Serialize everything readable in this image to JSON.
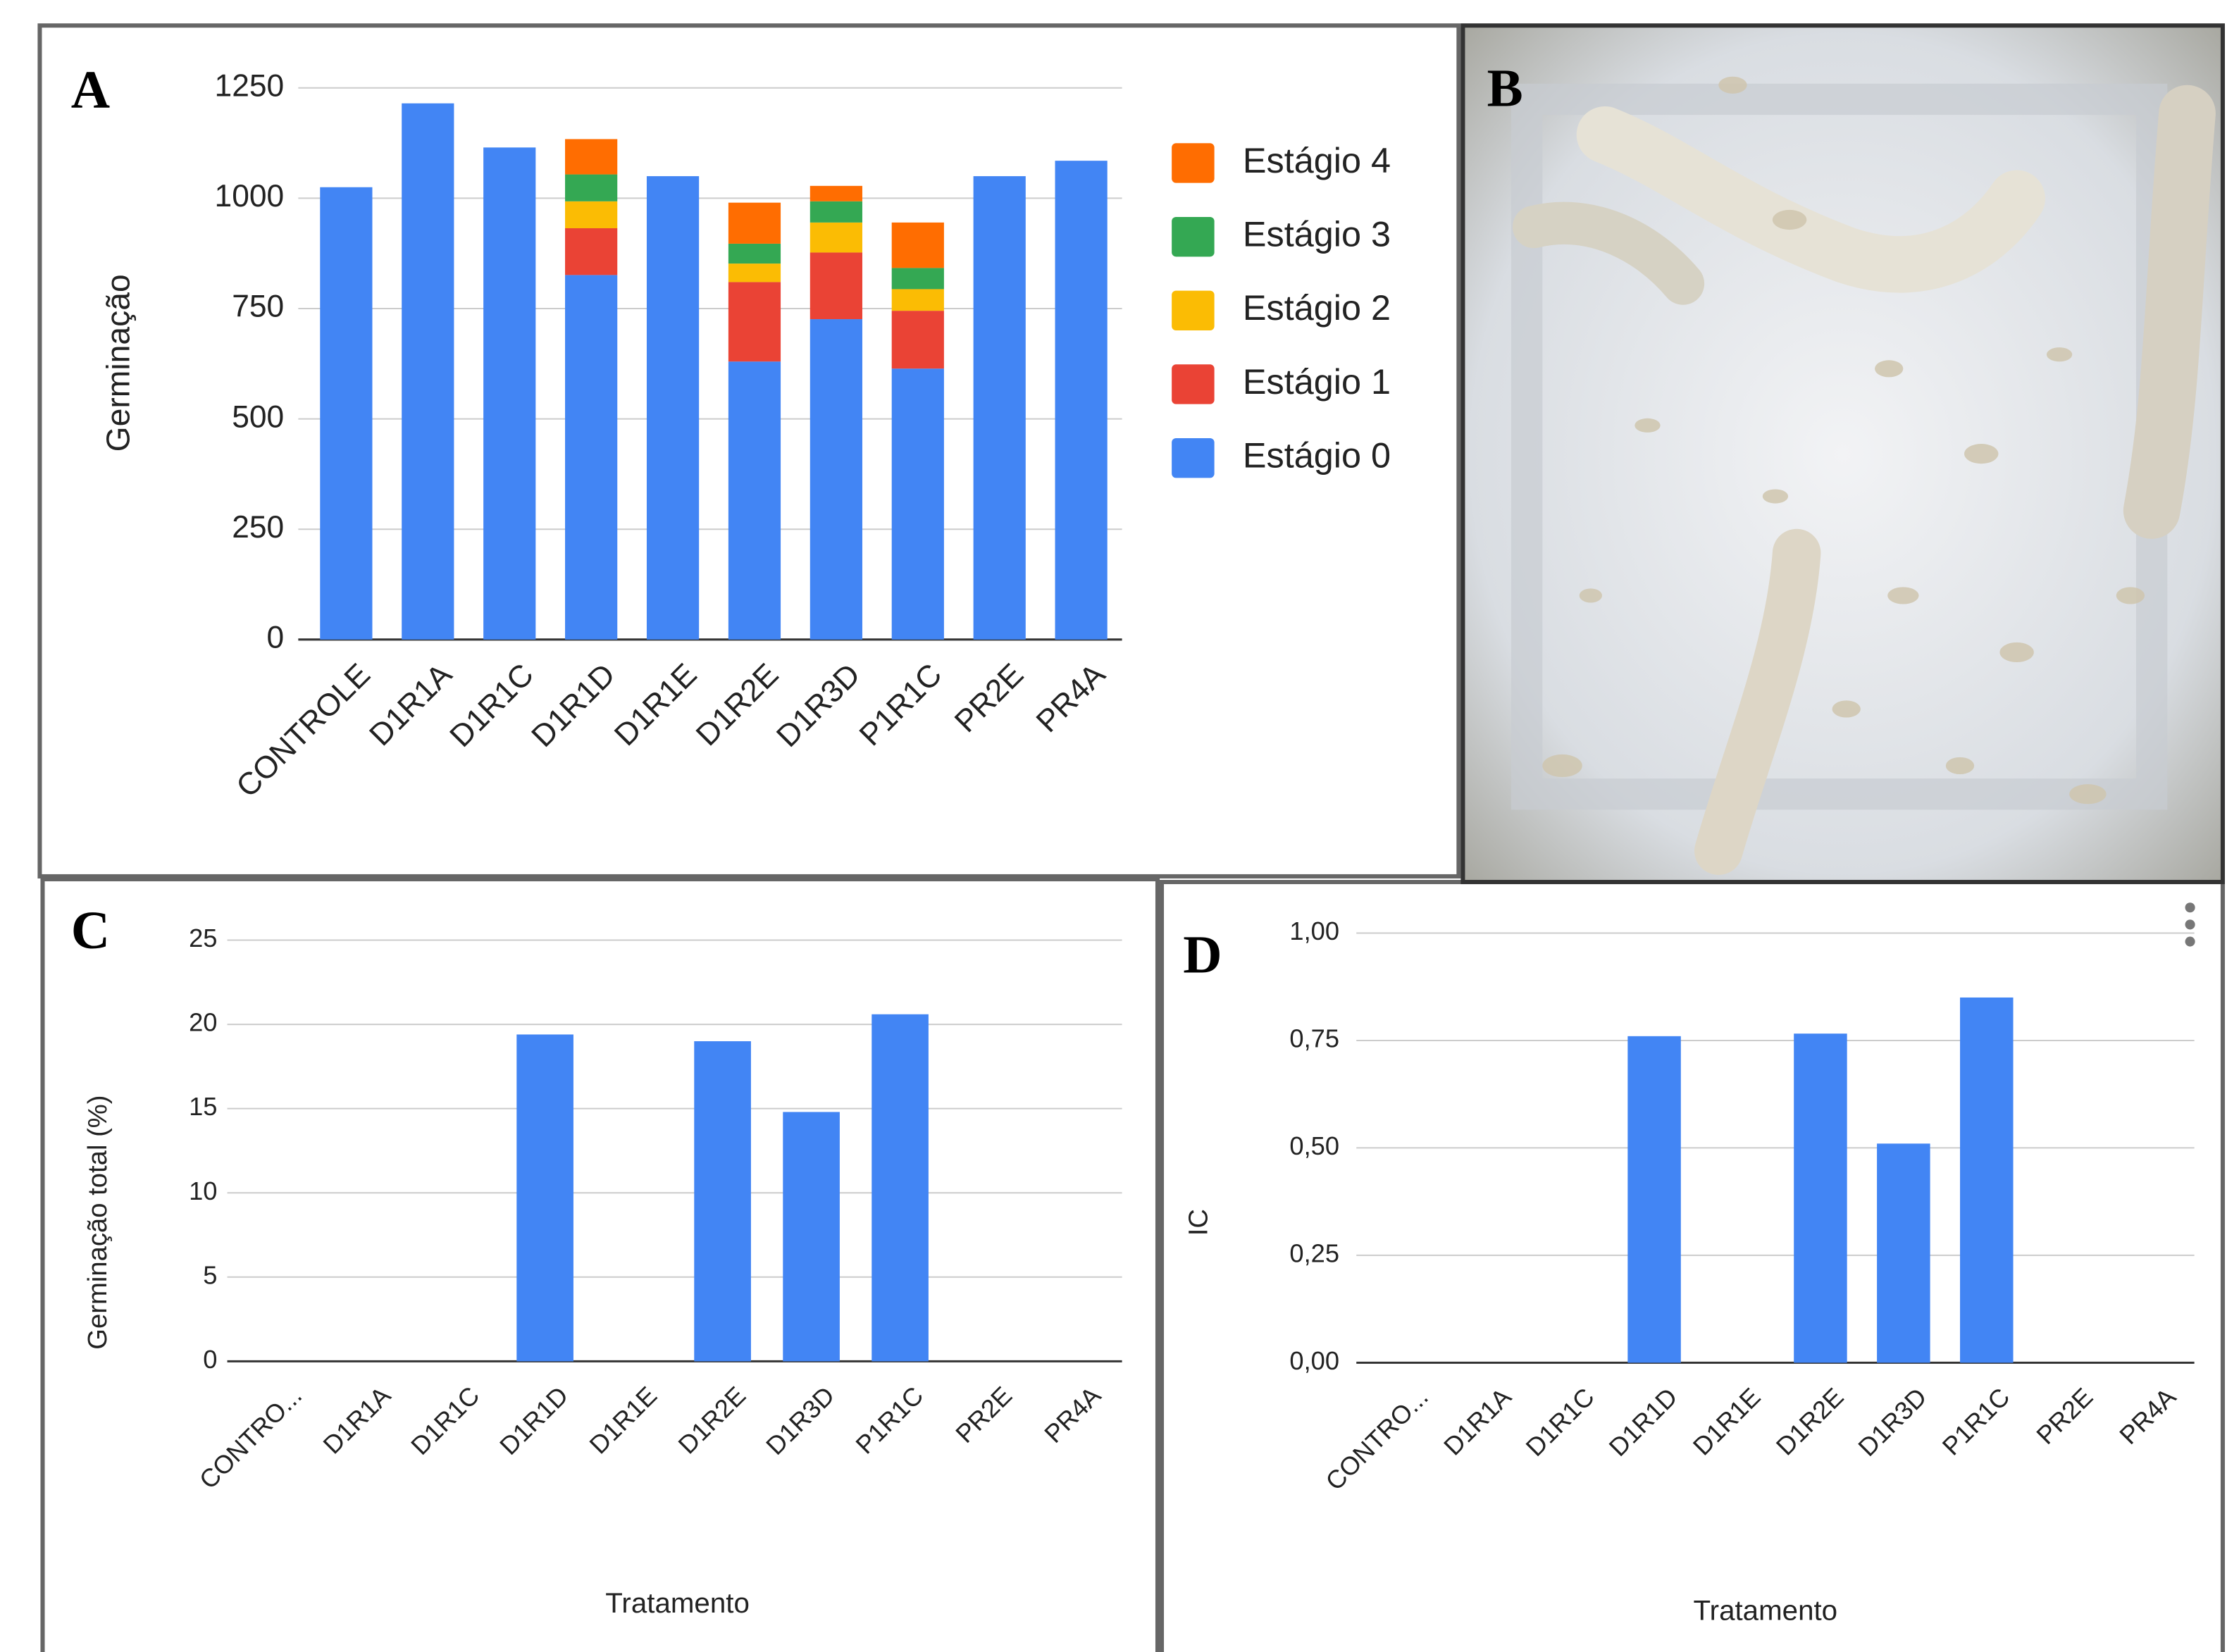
{
  "chart_data": [
    {
      "type": "stacked-bar",
      "panel": "A",
      "ylabel": "Germinação",
      "categories": [
        "CONTROLE",
        "D1R1A",
        "D1R1C",
        "D1R1D",
        "D1R1E",
        "D1R2E",
        "D1R3D",
        "P1R1C",
        "PR2E",
        "PR4A"
      ],
      "series": [
        {
          "name": "Estágio 0",
          "color": "#4285f4",
          "values": [
            1025,
            1215,
            1115,
            826,
            1050,
            630,
            726,
            614,
            1050,
            1085
          ]
        },
        {
          "name": "Estágio 1",
          "color": "#ea4335",
          "values": [
            0,
            0,
            0,
            106,
            0,
            180,
            151,
            131,
            0,
            0
          ]
        },
        {
          "name": "Estágio 2",
          "color": "#fbbc04",
          "values": [
            0,
            0,
            0,
            61,
            0,
            42,
            68,
            49,
            0,
            0
          ]
        },
        {
          "name": "Estágio 3",
          "color": "#34a853",
          "values": [
            0,
            0,
            0,
            61,
            0,
            45,
            48,
            48,
            0,
            0
          ]
        },
        {
          "name": "Estágio 4",
          "color": "#ff6d01",
          "values": [
            0,
            0,
            0,
            80,
            0,
            93,
            35,
            103,
            0,
            0
          ]
        }
      ],
      "ylim": [
        0,
        1250
      ],
      "yticks": [
        0,
        250,
        500,
        750,
        1000,
        1250
      ],
      "grid": true,
      "legend": "right"
    },
    {
      "type": "bar",
      "panel": "C",
      "ylabel": "Germinação total (%)",
      "xlabel": "Tratamento",
      "categories": [
        "CONTRO...",
        "D1R1A",
        "D1R1C",
        "D1R1D",
        "D1R1E",
        "D1R2E",
        "D1R3D",
        "P1R1C",
        "PR2E",
        "PR4A"
      ],
      "values": [
        0,
        0,
        0,
        19.4,
        0,
        19.0,
        14.8,
        20.6,
        0,
        0
      ],
      "color": "#4285f4",
      "ylim": [
        0,
        25
      ],
      "yticks": [
        0,
        5,
        10,
        15,
        20,
        25
      ],
      "grid": true
    },
    {
      "type": "bar",
      "panel": "D",
      "ylabel": "IC",
      "xlabel": "Tratamento",
      "categories": [
        "CONTRO...",
        "D1R1A",
        "D1R1C",
        "D1R1D",
        "D1R1E",
        "D1R2E",
        "D1R3D",
        "P1R1C",
        "PR2E",
        "PR4A"
      ],
      "values": [
        0,
        0,
        0,
        0.76,
        0,
        0.766,
        0.51,
        0.85,
        0,
        0
      ],
      "color": "#4285f4",
      "ylim": [
        0,
        1
      ],
      "yticks": [
        {
          "value": 0,
          "label": "0,00"
        },
        {
          "value": 0.25,
          "label": "0,25"
        },
        {
          "value": 0.5,
          "label": "0,50"
        },
        {
          "value": 0.75,
          "label": "0,75"
        },
        {
          "value": 1,
          "label": "1,00"
        }
      ],
      "grid": true
    }
  ],
  "photo": {
    "panel": "B"
  }
}
